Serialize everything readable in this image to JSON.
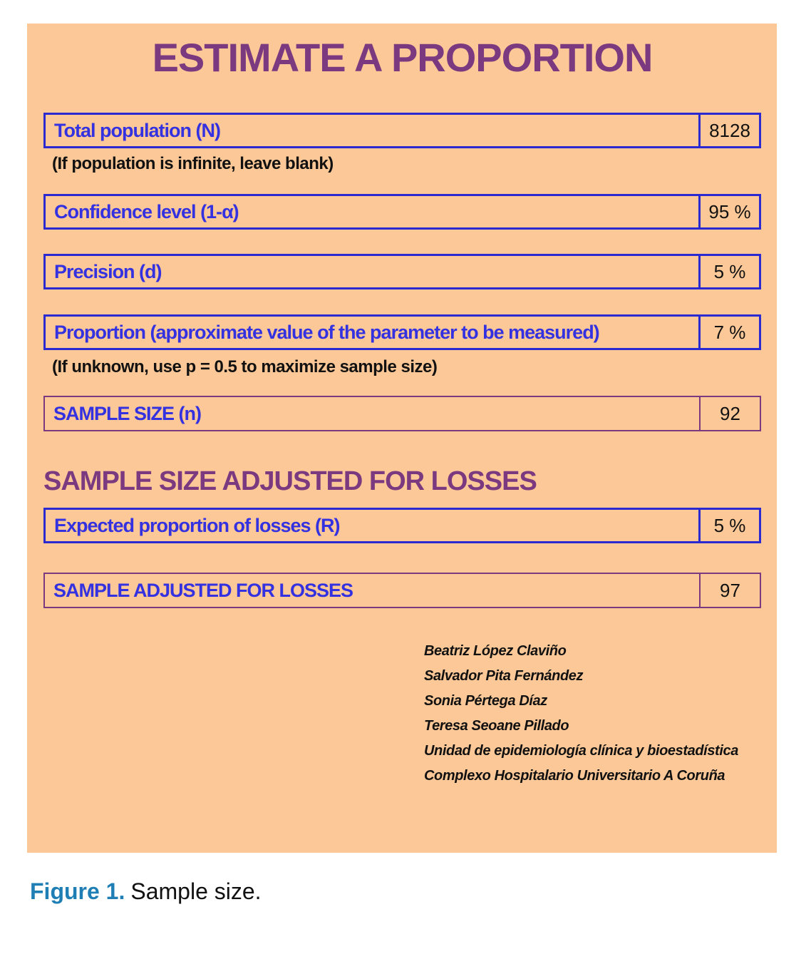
{
  "colors": {
    "background": "#fcc897",
    "heading_purple": "#7b3a80",
    "label_blue": "#3432e0",
    "border_blue": "#2b2ad0",
    "result_border_purple": "#7b3a80",
    "caption_blue": "#1f7fb5",
    "text_black": "#111111"
  },
  "panel": {
    "title": "ESTIMATE A PROPORTION",
    "fields": [
      {
        "label": "Total population (N)",
        "value": "8128",
        "note": "(If population is infinite, leave blank)"
      },
      {
        "label": "Confidence level (1-α)",
        "value": "95 %"
      },
      {
        "label": "Precision (d)",
        "value": "5 %"
      },
      {
        "label": "Proportion (approximate value of the parameter to be measured)",
        "value": "7 %",
        "note": "(If unknown, use p = 0.5 to maximize sample size)"
      }
    ],
    "sample_size": {
      "label": "SAMPLE SIZE (n)",
      "value": "92"
    },
    "losses_section": {
      "heading": "SAMPLE SIZE ADJUSTED FOR LOSSES",
      "expected_losses": {
        "label": "Expected proportion of losses (R)",
        "value": "5 %"
      },
      "sample_adjusted": {
        "label": "SAMPLE ADJUSTED FOR LOSSES",
        "value": "97"
      }
    },
    "credits": [
      "Beatriz López Claviño",
      "Salvador Pita Fernández",
      "Sonia Pértega Díaz",
      "Teresa Seoane Pillado",
      "Unidad de epidemiología clínica y bioestadística",
      "Complexo Hospitalario Universitario A Coruña"
    ]
  },
  "caption": {
    "label": "Figure 1.",
    "text": "Sample size."
  }
}
